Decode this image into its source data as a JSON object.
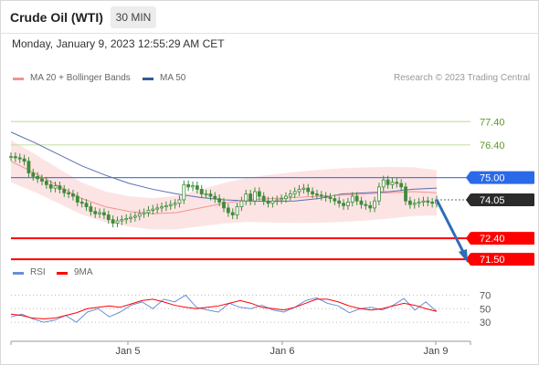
{
  "header": {
    "title": "Crude Oil (WTI)",
    "timeframe": "30 MIN",
    "datetime": "Monday, January 9, 2023 12:55:29 AM CET"
  },
  "legend": {
    "items": [
      {
        "label": "MA 20 + Bollinger Bands",
        "color": "#f2948f"
      },
      {
        "label": "MA 50",
        "color": "#2f5a96"
      }
    ],
    "credit": "Research © 2023 Trading Central"
  },
  "rsi_legend": {
    "items": [
      {
        "label": "RSI",
        "color": "#6a8fd6"
      },
      {
        "label": "9MA",
        "color": "#ff0000"
      }
    ]
  },
  "colors": {
    "candle": "#3f8b3a",
    "bollinger_band": "#fde4e4",
    "resistance": "#c6e2a7",
    "pivot": "#4a7ee8",
    "support": "#ff0000",
    "arrow": "#2f6db5",
    "current": "#222222"
  },
  "chart_data": {
    "type": "line",
    "title": "Crude Oil (WTI)",
    "timeframe": "30 MIN",
    "x_ticks": [
      "Jan 5",
      "Jan 6",
      "Jan 9"
    ],
    "price_levels": [
      {
        "label": "77.40",
        "value": 77.4,
        "kind": "resistance"
      },
      {
        "label": "76.40",
        "value": 76.4,
        "kind": "resistance"
      },
      {
        "label": "75.00",
        "value": 75.0,
        "kind": "pivot"
      },
      {
        "label": "74.05",
        "value": 74.05,
        "kind": "current"
      },
      {
        "label": "72.40",
        "value": 72.4,
        "kind": "support"
      },
      {
        "label": "71.50",
        "value": 71.5,
        "kind": "support"
      }
    ],
    "ylim": [
      71.35,
      78.7
    ],
    "series": [
      {
        "name": "Price",
        "values": [
          75.9,
          75.85,
          75.8,
          75.7,
          75.2,
          75.05,
          74.95,
          74.85,
          74.7,
          74.55,
          74.65,
          74.5,
          74.35,
          74.3,
          74.2,
          73.95,
          73.9,
          73.75,
          73.55,
          73.45,
          73.5,
          73.4,
          73.2,
          73.05,
          73.15,
          73.2,
          73.25,
          73.3,
          73.35,
          73.45,
          73.5,
          73.6,
          73.65,
          73.7,
          73.75,
          73.8,
          73.85,
          73.9,
          74.05,
          74.7,
          74.6,
          74.65,
          74.5,
          74.3,
          74.3,
          74.2,
          74.1,
          73.95,
          73.7,
          73.5,
          73.4,
          73.75,
          74.0,
          74.3,
          74.0,
          74.4,
          74.2,
          74.0,
          73.9,
          74.0,
          74.05,
          74.1,
          74.2,
          74.3,
          74.4,
          74.5,
          74.55,
          74.4,
          74.3,
          74.25,
          74.2,
          74.15,
          74.1,
          74.0,
          73.9,
          73.8,
          73.95,
          74.2,
          74.0,
          73.85,
          73.8,
          73.7,
          74.0,
          74.6,
          74.9,
          74.7,
          74.8,
          74.75,
          74.6,
          74.0,
          73.85,
          73.9,
          73.95,
          74.0,
          73.95,
          73.9,
          74.05
        ]
      },
      {
        "name": "MA 50",
        "values": [
          76.95,
          76.5,
          76.0,
          75.5,
          75.1,
          74.75,
          74.5,
          74.3,
          74.15,
          74.05,
          74.0,
          73.98,
          74.0,
          74.1,
          74.3,
          74.35,
          74.4,
          74.5,
          74.55
        ]
      },
      {
        "name": "MA 20",
        "values": [
          75.7,
          75.2,
          74.65,
          74.1,
          73.75,
          73.55,
          73.45,
          73.5,
          73.7,
          73.9,
          74.05,
          74.1,
          74.15,
          74.2,
          74.25,
          74.3,
          74.35,
          74.4,
          74.35
        ]
      },
      {
        "name": "RSI",
        "values": [
          38,
          42,
          35,
          30,
          33,
          40,
          30,
          45,
          50,
          38,
          45,
          55,
          60,
          50,
          64,
          60,
          70,
          52,
          48,
          45,
          58,
          52,
          50,
          55,
          48,
          45,
          52,
          62,
          66,
          58,
          54,
          44,
          50,
          52,
          48,
          55,
          65,
          48,
          60,
          46
        ]
      },
      {
        "name": "9MA",
        "values": [
          42,
          40,
          36,
          35,
          36,
          40,
          44,
          50,
          52,
          54,
          52,
          57,
          62,
          64,
          60,
          55,
          52,
          50,
          52,
          54,
          58,
          62,
          58,
          52,
          50,
          48,
          52,
          58,
          64,
          64,
          60,
          54,
          50,
          48,
          50,
          54,
          58,
          55,
          50,
          46
        ]
      }
    ],
    "rsi_ticks": [
      70,
      50,
      30
    ],
    "rsi_ylim": [
      10,
      80
    ]
  }
}
